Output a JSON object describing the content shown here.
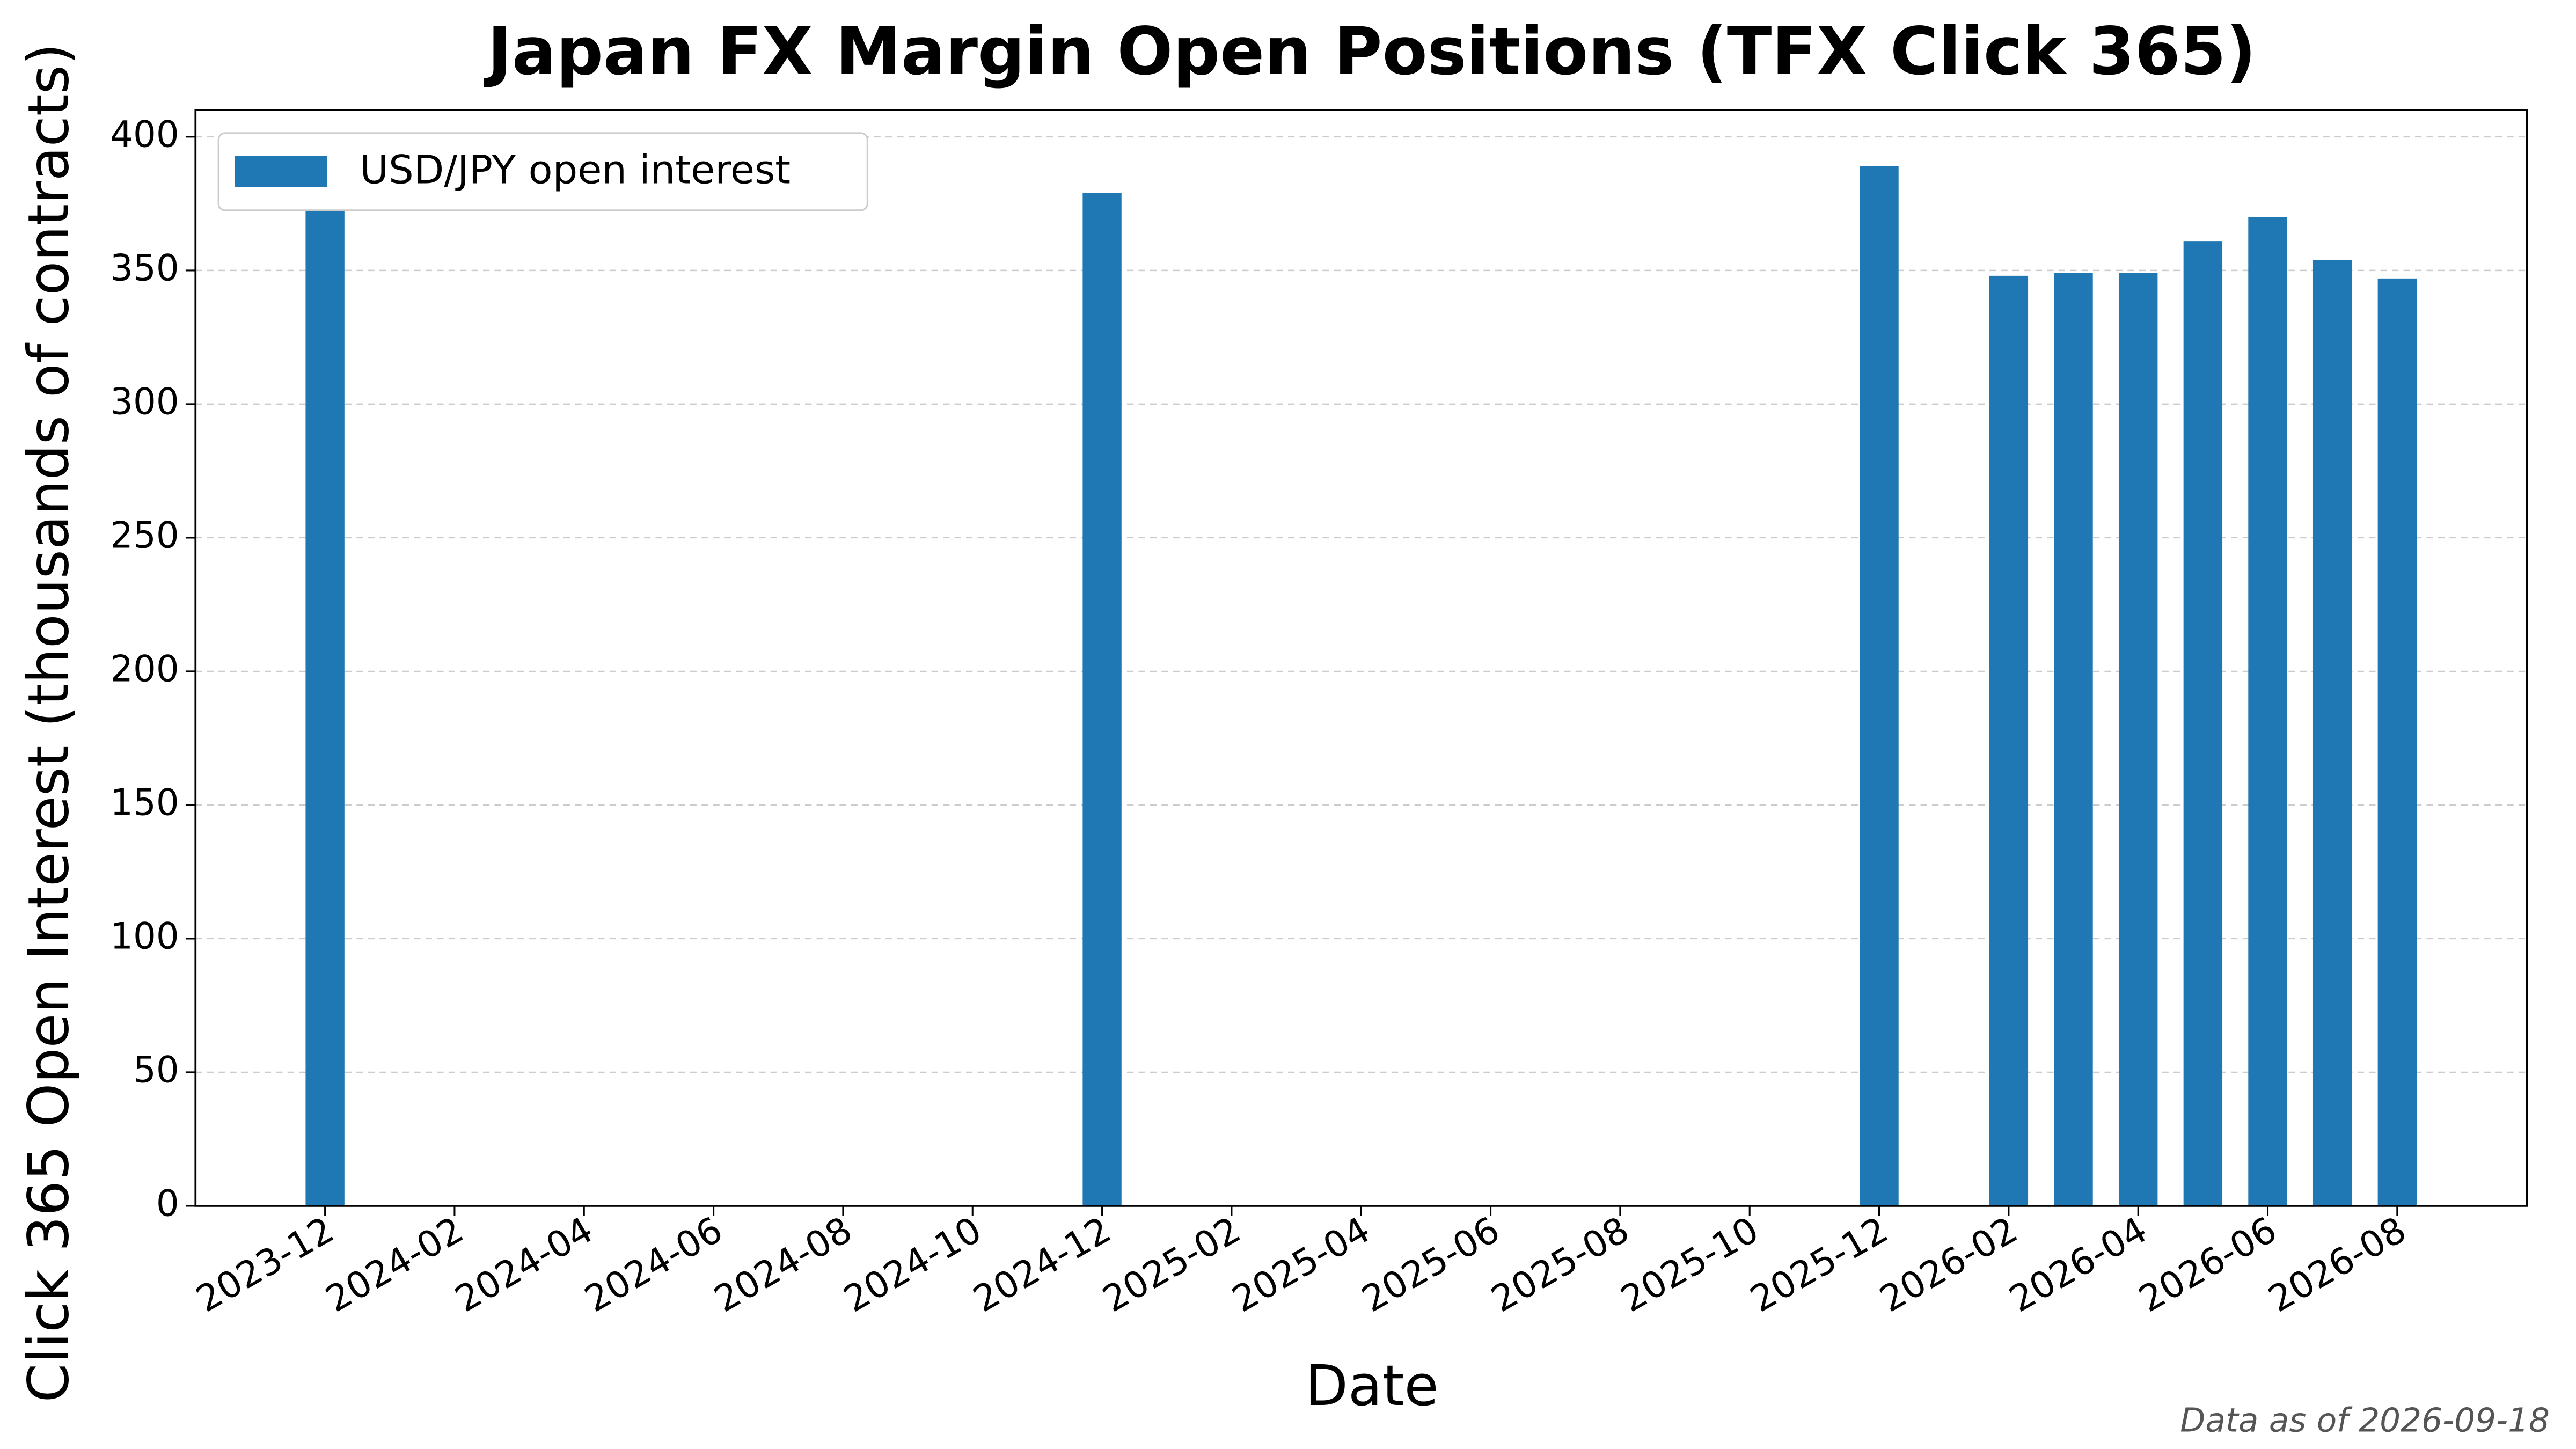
{
  "chart_data": {
    "type": "bar",
    "title": "Japan FX Margin Open Positions (TFX Click 365)",
    "x_label": "Date",
    "y_label": "Click 365 Open Interest (thousands of contracts)",
    "annotation": "Data as of 2026-09-18",
    "x": [
      "2023-12",
      "2024-12",
      "2025-12",
      "2026-02",
      "2026-03",
      "2026-04",
      "2026-05",
      "2026-06",
      "2026-07",
      "2026-08"
    ],
    "series": [
      {
        "name": "USD/JPY open interest",
        "color": "#1f77b4",
        "values": [
          374,
          379,
          389,
          348,
          349,
          349,
          361,
          370,
          354,
          347
        ]
      }
    ],
    "xlim": [
      "2023-10",
      "2026-10"
    ],
    "xticks": [
      "2023-12",
      "2024-02",
      "2024-04",
      "2024-06",
      "2024-08",
      "2024-10",
      "2024-12",
      "2025-02",
      "2025-04",
      "2025-06",
      "2025-08",
      "2025-10",
      "2025-12",
      "2026-02",
      "2026-04",
      "2026-06",
      "2026-08"
    ],
    "ylim": [
      0,
      410
    ],
    "yticks": [
      0,
      50,
      100,
      150,
      200,
      250,
      300,
      350,
      400
    ],
    "grid": true,
    "legend": "upper left"
  }
}
